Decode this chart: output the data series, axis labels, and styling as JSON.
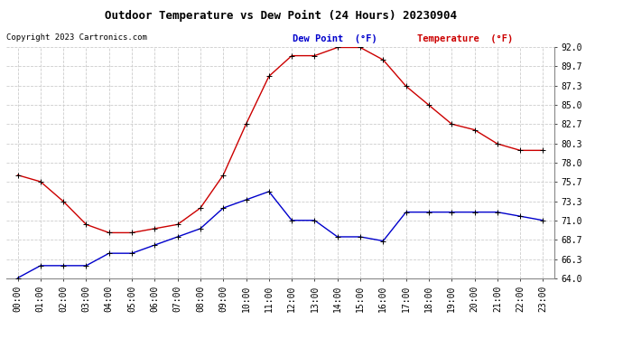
{
  "title": "Outdoor Temperature vs Dew Point (24 Hours) 20230904",
  "copyright_text": "Copyright 2023 Cartronics.com",
  "hours": [
    "00:00",
    "01:00",
    "02:00",
    "03:00",
    "04:00",
    "05:00",
    "06:00",
    "07:00",
    "08:00",
    "09:00",
    "10:00",
    "11:00",
    "12:00",
    "13:00",
    "14:00",
    "15:00",
    "16:00",
    "17:00",
    "18:00",
    "19:00",
    "20:00",
    "21:00",
    "22:00",
    "23:00"
  ],
  "temperature": [
    76.5,
    75.7,
    73.3,
    70.5,
    69.5,
    69.5,
    70.0,
    70.5,
    72.5,
    76.5,
    82.7,
    88.5,
    91.0,
    91.0,
    92.0,
    92.0,
    90.5,
    87.3,
    85.0,
    82.7,
    82.0,
    80.3,
    79.5,
    79.5
  ],
  "dew_point": [
    64.0,
    65.5,
    65.5,
    65.5,
    67.0,
    67.0,
    68.0,
    69.0,
    70.0,
    72.5,
    73.5,
    74.5,
    71.0,
    71.0,
    69.0,
    69.0,
    68.5,
    72.0,
    72.0,
    72.0,
    72.0,
    72.0,
    71.5,
    71.0
  ],
  "temp_color": "#cc0000",
  "dew_color": "#0000cc",
  "ylim_min": 64.0,
  "ylim_max": 92.0,
  "yticks": [
    64.0,
    66.3,
    68.7,
    71.0,
    73.3,
    75.7,
    78.0,
    80.3,
    82.7,
    85.0,
    87.3,
    89.7,
    92.0
  ],
  "background_color": "#ffffff",
  "grid_color": "#cccccc",
  "legend_dew_label": "Dew Point  (°F)",
  "legend_temp_label": "Temperature  (°F)",
  "marker": "+",
  "markersize": 4,
  "linewidth": 1.0
}
